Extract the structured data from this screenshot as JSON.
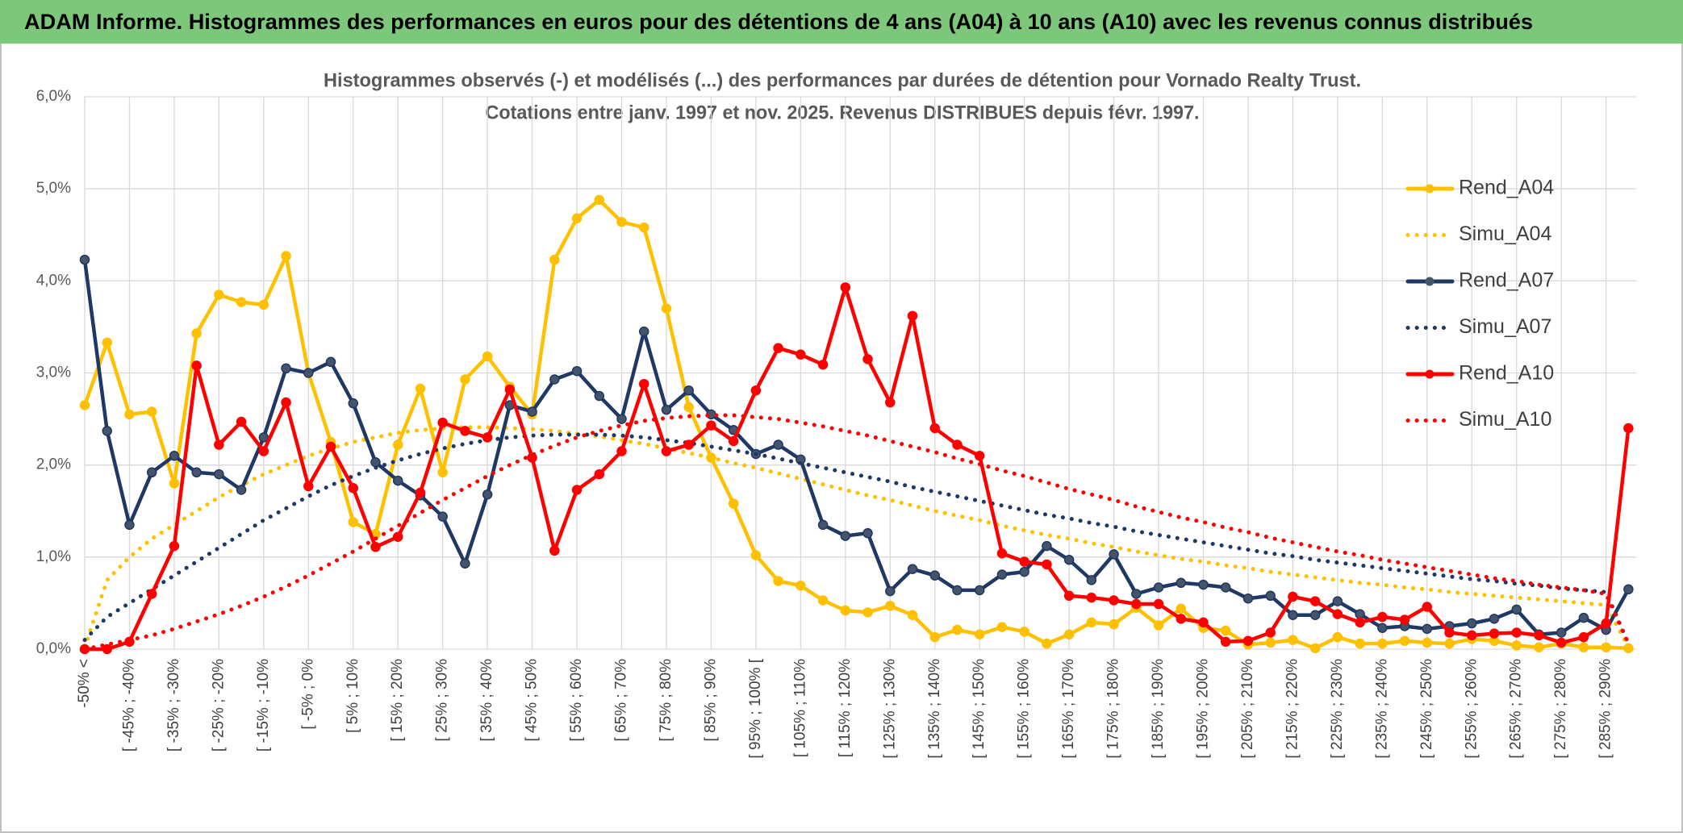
{
  "chart_data": {
    "type": "line",
    "title": "ADAM Informe. Histogrammes des performances en euros pour des détentions de 4 ans (A04) à 10 ans (A10) avec les revenus connus distribués",
    "subtitle": [
      "Histogrammes observés (-) et modélisés (...) des performances par durées de détention pour Vornado Realty Trust.",
      "Cotations entre janv. 1997 et nov. 2025. Revenus DISTRIBUES depuis févr. 1997."
    ],
    "categories": [
      "-50% <",
      null,
      "[ -45% ; -40%",
      null,
      "[ -35% ; -30%",
      null,
      "[ -25% ; -20%",
      null,
      "[ -15% ; -10%",
      null,
      "[ -5% ; 0%",
      null,
      "[ 5% ; 10%",
      null,
      "[ 15% ; 20%",
      null,
      "[ 25% ; 30%",
      null,
      "[ 35% ; 40%",
      null,
      "[ 45% ; 50%",
      null,
      "[ 55% ; 60%",
      null,
      "[ 65% ; 70%",
      null,
      "[ 75% ; 80%",
      null,
      "[ 85% ; 90%",
      null,
      "[ 95% ; 100% [",
      null,
      "[ 105% ; 110%",
      null,
      "[ 115% ; 120%",
      null,
      "[ 125% ; 130%",
      null,
      "[ 135% ; 140%",
      null,
      "[ 145% ; 150%",
      null,
      "[ 155% ; 160%",
      null,
      "[ 165% ; 170%",
      null,
      "[ 175% ; 180%",
      null,
      "[ 185% ; 190%",
      null,
      "[ 195% ; 200%",
      null,
      "[ 205% ; 210%",
      null,
      "[ 215% ; 220%",
      null,
      "[ 225% ; 230%",
      null,
      "[ 235% ; 240%",
      null,
      "[ 245% ; 250%",
      null,
      "[ 255% ; 260%",
      null,
      "[ 265% ; 270%",
      null,
      "[ 275% ; 280%",
      null,
      "[ 285% ; 290%",
      null
    ],
    "ylim": [
      0,
      6
    ],
    "yticks": [
      {
        "value": 0,
        "label": "0,0%"
      },
      {
        "value": 1,
        "label": "1,0%"
      },
      {
        "value": 2,
        "label": "2,0%"
      },
      {
        "value": 3,
        "label": "3,0%"
      },
      {
        "value": 4,
        "label": "4,0%"
      },
      {
        "value": 5,
        "label": "5,0%"
      },
      {
        "value": 6,
        "label": "6,0%"
      }
    ],
    "grid": true,
    "legend": "right",
    "series": [
      {
        "name": "Rend_A04",
        "color": "#FFC000",
        "line_style": "solid",
        "markers": true,
        "values": [
          2.65,
          3.33,
          2.55,
          2.58,
          1.8,
          3.43,
          3.85,
          3.77,
          3.74,
          4.27,
          3.0,
          2.25,
          1.38,
          1.25,
          2.22,
          2.83,
          1.92,
          2.93,
          3.18,
          2.85,
          2.55,
          4.23,
          4.68,
          4.88,
          4.64,
          4.58,
          3.7,
          2.63,
          2.08,
          1.58,
          1.02,
          0.74,
          0.69,
          0.53,
          0.42,
          0.4,
          0.47,
          0.37,
          0.13,
          0.21,
          0.16,
          0.24,
          0.19,
          0.06,
          0.16,
          0.29,
          0.27,
          0.45,
          0.26,
          0.44,
          0.23,
          0.2,
          0.05,
          0.07,
          0.1,
          0.01,
          0.13,
          0.06,
          0.06,
          0.09,
          0.07,
          0.06,
          0.11,
          0.09,
          0.04,
          0.02,
          0.06,
          0.02,
          0.02,
          0.01
        ]
      },
      {
        "name": "Simu_A04",
        "color": "#FFC000",
        "line_style": "dotted",
        "markers": false,
        "values": [
          0.02,
          0.75,
          1.0,
          1.2,
          1.35,
          1.5,
          1.65,
          1.78,
          1.9,
          2.0,
          2.1,
          2.18,
          2.25,
          2.3,
          2.35,
          2.38,
          2.4,
          2.41,
          2.41,
          2.4,
          2.39,
          2.37,
          2.34,
          2.31,
          2.27,
          2.23,
          2.18,
          2.13,
          2.08,
          2.02,
          1.97,
          1.91,
          1.85,
          1.79,
          1.73,
          1.67,
          1.62,
          1.56,
          1.5,
          1.45,
          1.4,
          1.34,
          1.29,
          1.24,
          1.2,
          1.15,
          1.11,
          1.06,
          1.02,
          0.98,
          0.95,
          0.91,
          0.88,
          0.84,
          0.81,
          0.78,
          0.75,
          0.72,
          0.7,
          0.67,
          0.65,
          0.62,
          0.6,
          0.58,
          0.56,
          0.54,
          0.52,
          0.5,
          0.48,
          0.02
        ]
      },
      {
        "name": "Rend_A07",
        "color": "#1F3864",
        "line_style": "solid",
        "markers": true,
        "values": [
          4.23,
          2.37,
          1.35,
          1.92,
          2.1,
          1.92,
          1.9,
          1.73,
          2.3,
          3.05,
          3.0,
          3.12,
          2.67,
          2.03,
          1.83,
          1.67,
          1.44,
          0.93,
          1.68,
          2.65,
          2.58,
          2.93,
          3.02,
          2.75,
          2.5,
          3.45,
          2.6,
          2.81,
          2.55,
          2.38,
          2.12,
          2.22,
          2.06,
          1.35,
          1.23,
          1.26,
          0.63,
          0.87,
          0.8,
          0.64,
          0.64,
          0.81,
          0.84,
          1.12,
          0.97,
          0.75,
          1.03,
          0.6,
          0.67,
          0.72,
          0.7,
          0.67,
          0.55,
          0.58,
          0.37,
          0.37,
          0.52,
          0.38,
          0.23,
          0.25,
          0.22,
          0.25,
          0.28,
          0.33,
          0.43,
          0.16,
          0.18,
          0.34,
          0.21,
          0.65
        ]
      },
      {
        "name": "Simu_A07",
        "color": "#1F3864",
        "line_style": "dotted",
        "markers": false,
        "values": [
          0.1,
          0.35,
          0.5,
          0.65,
          0.8,
          0.95,
          1.1,
          1.25,
          1.4,
          1.53,
          1.66,
          1.78,
          1.88,
          1.97,
          2.05,
          2.12,
          2.18,
          2.23,
          2.27,
          2.3,
          2.32,
          2.33,
          2.33,
          2.33,
          2.32,
          2.3,
          2.27,
          2.24,
          2.2,
          2.16,
          2.12,
          2.07,
          2.02,
          1.97,
          1.92,
          1.87,
          1.82,
          1.76,
          1.71,
          1.66,
          1.61,
          1.56,
          1.51,
          1.46,
          1.42,
          1.37,
          1.33,
          1.28,
          1.24,
          1.2,
          1.16,
          1.12,
          1.08,
          1.04,
          1.01,
          0.97,
          0.94,
          0.91,
          0.88,
          0.85,
          0.82,
          0.79,
          0.76,
          0.74,
          0.71,
          0.69,
          0.66,
          0.64,
          0.62,
          0.06
        ]
      },
      {
        "name": "Rend_A10",
        "color": "#FF0000",
        "line_style": "solid",
        "markers": true,
        "values": [
          0.0,
          0.0,
          0.08,
          0.6,
          1.12,
          3.08,
          2.22,
          2.47,
          2.15,
          2.68,
          1.77,
          2.2,
          1.75,
          1.11,
          1.22,
          1.7,
          2.46,
          2.37,
          2.3,
          2.82,
          2.08,
          1.07,
          1.73,
          1.9,
          2.15,
          2.88,
          2.15,
          2.22,
          2.43,
          2.26,
          2.81,
          3.27,
          3.2,
          3.09,
          3.93,
          3.15,
          2.68,
          3.62,
          2.4,
          2.22,
          2.1,
          1.04,
          0.95,
          0.92,
          0.58,
          0.56,
          0.53,
          0.49,
          0.49,
          0.33,
          0.29,
          0.08,
          0.09,
          0.18,
          0.57,
          0.52,
          0.38,
          0.29,
          0.35,
          0.32,
          0.46,
          0.18,
          0.15,
          0.17,
          0.18,
          0.15,
          0.07,
          0.13,
          0.28,
          2.4
        ]
      },
      {
        "name": "Simu_A10",
        "color": "#FF0000",
        "line_style": "dotted",
        "markers": false,
        "values": [
          0.0,
          0.05,
          0.1,
          0.15,
          0.22,
          0.3,
          0.38,
          0.47,
          0.57,
          0.68,
          0.8,
          0.93,
          1.06,
          1.2,
          1.34,
          1.48,
          1.62,
          1.75,
          1.88,
          2.0,
          2.11,
          2.21,
          2.3,
          2.37,
          2.43,
          2.48,
          2.51,
          2.53,
          2.54,
          2.54,
          2.52,
          2.5,
          2.46,
          2.42,
          2.37,
          2.32,
          2.26,
          2.2,
          2.14,
          2.07,
          2.01,
          1.94,
          1.88,
          1.81,
          1.74,
          1.68,
          1.62,
          1.55,
          1.49,
          1.43,
          1.38,
          1.32,
          1.27,
          1.21,
          1.16,
          1.11,
          1.06,
          1.02,
          0.97,
          0.93,
          0.89,
          0.85,
          0.81,
          0.77,
          0.74,
          0.7,
          0.67,
          0.64,
          0.6,
          0.06
        ]
      }
    ]
  }
}
